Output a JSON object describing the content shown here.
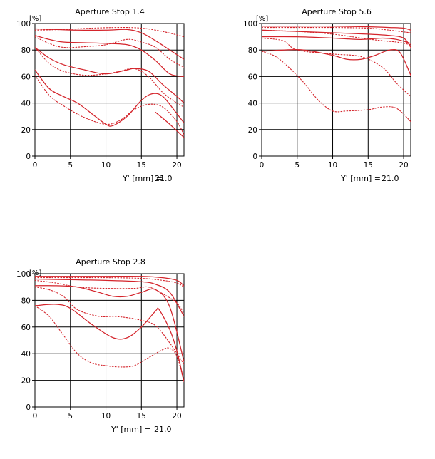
{
  "chart_data": [
    {
      "type": "line",
      "title": "Aperture Stop 1.4",
      "ylabel": "[%]",
      "xlabel_text": "Y' [mm] =",
      "xlabel_value": "21.0",
      "xlim": [
        0,
        21
      ],
      "ylim": [
        0,
        100
      ],
      "xticks": [
        0,
        5,
        10,
        15,
        20
      ],
      "yticks": [
        0,
        20,
        40,
        60,
        80,
        100
      ],
      "grid": true,
      "color": "#d4242b",
      "series": [
        {
          "style": "solid",
          "points": [
            [
              0,
              96
            ],
            [
              3,
              95.5
            ],
            [
              6,
              95
            ],
            [
              10,
              95
            ],
            [
              13,
              95.5
            ],
            [
              15,
              93
            ],
            [
              17,
              87
            ],
            [
              19,
              80
            ],
            [
              21,
              73
            ]
          ]
        },
        {
          "style": "dotted",
          "points": [
            [
              0,
              95
            ],
            [
              4,
              95.5
            ],
            [
              8,
              96.5
            ],
            [
              12,
              97
            ],
            [
              15,
              96.5
            ],
            [
              18,
              94
            ],
            [
              21,
              90
            ]
          ]
        },
        {
          "style": "solid",
          "points": [
            [
              0,
              91
            ],
            [
              2,
              88
            ],
            [
              4,
              86
            ],
            [
              7,
              85.5
            ],
            [
              10,
              85
            ],
            [
              13,
              84
            ],
            [
              15,
              80
            ],
            [
              17,
              72
            ],
            [
              19,
              62
            ],
            [
              21,
              60
            ]
          ]
        },
        {
          "style": "dotted",
          "points": [
            [
              0,
              90
            ],
            [
              2,
              85
            ],
            [
              4,
              82
            ],
            [
              7,
              82.5
            ],
            [
              10,
              84
            ],
            [
              13,
              88
            ],
            [
              15,
              86
            ],
            [
              17,
              82
            ],
            [
              19,
              73
            ],
            [
              21,
              67
            ]
          ]
        },
        {
          "style": "solid",
          "points": [
            [
              0,
              82
            ],
            [
              2,
              74
            ],
            [
              4,
              69
            ],
            [
              7,
              65
            ],
            [
              10,
              62
            ],
            [
              13,
              65
            ],
            [
              14,
              66
            ],
            [
              16,
              64
            ],
            [
              18,
              54
            ],
            [
              20,
              45
            ],
            [
              21,
              40
            ]
          ]
        },
        {
          "style": "dotted",
          "points": [
            [
              0,
              82
            ],
            [
              2,
              70
            ],
            [
              4,
              64
            ],
            [
              7,
              61
            ],
            [
              10,
              62
            ],
            [
              12,
              64
            ],
            [
              14,
              66
            ],
            [
              16,
              60
            ],
            [
              18,
              48
            ],
            [
              20,
              40
            ],
            [
              21,
              37
            ]
          ]
        },
        {
          "style": "solid",
          "points": [
            [
              0,
              65
            ],
            [
              2,
              51
            ],
            [
              4,
              45
            ],
            [
              6,
              40
            ],
            [
              8,
              32
            ],
            [
              10,
              24
            ],
            [
              11,
              23
            ],
            [
              13,
              30
            ],
            [
              15,
              42
            ],
            [
              16.5,
              47
            ],
            [
              18,
              45
            ],
            [
              20,
              32
            ],
            [
              21,
              25
            ]
          ]
        },
        {
          "style": "dotted",
          "points": [
            [
              0,
              61
            ],
            [
              2,
              46
            ],
            [
              4,
              38
            ],
            [
              7,
              29
            ],
            [
              10,
              24
            ],
            [
              12,
              27
            ],
            [
              14,
              35
            ],
            [
              16,
              39
            ],
            [
              18,
              37
            ],
            [
              20,
              26
            ],
            [
              21,
              16
            ]
          ]
        },
        {
          "style": "solid",
          "points": [
            [
              17,
              33
            ],
            [
              19,
              24
            ],
            [
              21,
              14
            ]
          ]
        }
      ]
    },
    {
      "type": "line",
      "title": "Aperture Stop 5.6",
      "ylabel": "[%]",
      "xlabel_text": "Y' [mm] =",
      "xlabel_value": "21.0",
      "xlim": [
        0,
        21
      ],
      "ylim": [
        0,
        100
      ],
      "xticks": [
        0,
        5,
        10,
        15,
        20
      ],
      "yticks": [
        0,
        20,
        40,
        60,
        80,
        100
      ],
      "grid": true,
      "color": "#d4242b",
      "series": [
        {
          "style": "solid",
          "points": [
            [
              0,
              98
            ],
            [
              5,
              98
            ],
            [
              10,
              98
            ],
            [
              15,
              97.5
            ],
            [
              18,
              97
            ],
            [
              20,
              96.5
            ],
            [
              21,
              95
            ]
          ]
        },
        {
          "style": "dotted",
          "points": [
            [
              0,
              97
            ],
            [
              5,
              97
            ],
            [
              10,
              97
            ],
            [
              15,
              96.5
            ],
            [
              18,
              95
            ],
            [
              21,
              93
            ]
          ]
        },
        {
          "style": "solid",
          "points": [
            [
              0,
              95
            ],
            [
              5,
              94
            ],
            [
              10,
              93
            ],
            [
              15,
              92
            ],
            [
              18,
              91
            ],
            [
              20,
              89
            ],
            [
              21,
              82
            ]
          ]
        },
        {
          "style": "dotted",
          "points": [
            [
              0,
              95
            ],
            [
              5,
              94
            ],
            [
              10,
              92
            ],
            [
              14,
              89
            ],
            [
              17,
              87
            ],
            [
              19,
              86
            ],
            [
              21,
              84
            ]
          ]
        },
        {
          "style": "solid",
          "points": [
            [
              0,
              90
            ],
            [
              5,
              90
            ],
            [
              10,
              89
            ],
            [
              14,
              88
            ],
            [
              17,
              89
            ],
            [
              19,
              88
            ],
            [
              21,
              85
            ]
          ]
        },
        {
          "style": "dotted",
          "points": [
            [
              0,
              89
            ],
            [
              3,
              87
            ],
            [
              5,
              80
            ],
            [
              10,
              77
            ],
            [
              14,
              75
            ],
            [
              17,
              67
            ],
            [
              19,
              55
            ],
            [
              21,
              45
            ]
          ]
        },
        {
          "style": "solid",
          "points": [
            [
              0,
              79
            ],
            [
              3,
              80
            ],
            [
              6,
              80
            ],
            [
              10,
              76
            ],
            [
              12,
              73
            ],
            [
              14,
              73
            ],
            [
              16,
              76
            ],
            [
              18,
              80
            ],
            [
              19.5,
              78
            ],
            [
              21,
              61
            ]
          ]
        },
        {
          "style": "dotted",
          "points": [
            [
              0,
              79
            ],
            [
              2,
              75
            ],
            [
              4,
              66
            ],
            [
              6,
              55
            ],
            [
              8,
              42
            ],
            [
              10,
              34
            ],
            [
              12,
              34
            ],
            [
              15,
              35
            ],
            [
              17,
              37
            ],
            [
              19,
              36
            ],
            [
              21,
              26
            ]
          ]
        }
      ]
    },
    {
      "type": "line",
      "title": "Aperture Stop 2.8",
      "ylabel": "[%]",
      "xlabel_text": "Y' [mm] =",
      "xlabel_value": "21.0",
      "xlim": [
        0,
        21
      ],
      "ylim": [
        0,
        100
      ],
      "xticks": [
        0,
        5,
        10,
        15,
        20
      ],
      "yticks": [
        0,
        20,
        40,
        60,
        80,
        100
      ],
      "grid": true,
      "color": "#d4242b",
      "series": [
        {
          "style": "solid",
          "points": [
            [
              0,
              98
            ],
            [
              5,
              98
            ],
            [
              10,
              98
            ],
            [
              15,
              98
            ],
            [
              18,
              97
            ],
            [
              20,
              95
            ],
            [
              21,
              91
            ]
          ]
        },
        {
          "style": "dotted",
          "points": [
            [
              0,
              97
            ],
            [
              5,
              97
            ],
            [
              10,
              97
            ],
            [
              15,
              96.5
            ],
            [
              18,
              95
            ],
            [
              20,
              93
            ],
            [
              21,
              90
            ]
          ]
        },
        {
          "style": "solid",
          "points": [
            [
              0,
              96
            ],
            [
              5,
              95.5
            ],
            [
              10,
              95
            ],
            [
              15,
              94
            ],
            [
              17,
              92
            ],
            [
              19,
              86
            ],
            [
              21,
              68
            ]
          ]
        },
        {
          "style": "dotted",
          "points": [
            [
              0,
              95
            ],
            [
              3,
              93
            ],
            [
              6,
              90
            ],
            [
              10,
              89
            ],
            [
              14,
              89
            ],
            [
              16,
              90
            ],
            [
              18,
              85
            ],
            [
              20,
              78
            ],
            [
              21,
              70
            ]
          ]
        },
        {
          "style": "solid",
          "points": [
            [
              0,
              91
            ],
            [
              3,
              91
            ],
            [
              6,
              90
            ],
            [
              9,
              86
            ],
            [
              11,
              83
            ],
            [
              13,
              83
            ],
            [
              15,
              86
            ],
            [
              17,
              88
            ],
            [
              19,
              75
            ],
            [
              21,
              34
            ]
          ]
        },
        {
          "style": "dotted",
          "points": [
            [
              0,
              90
            ],
            [
              2,
              88
            ],
            [
              4,
              83
            ],
            [
              6,
              73
            ],
            [
              9,
              68
            ],
            [
              11,
              68
            ],
            [
              13,
              67
            ],
            [
              15,
              65
            ],
            [
              17,
              61
            ],
            [
              19,
              48
            ],
            [
              21,
              32
            ]
          ]
        },
        {
          "style": "solid",
          "points": [
            [
              0,
              76
            ],
            [
              3,
              77
            ],
            [
              5,
              74
            ],
            [
              8,
              62
            ],
            [
              11,
              52
            ],
            [
              13,
              52
            ],
            [
              15,
              60
            ],
            [
              17,
              72
            ],
            [
              17.5,
              73
            ],
            [
              19,
              58
            ],
            [
              20,
              42
            ],
            [
              21,
              19
            ]
          ]
        },
        {
          "style": "dotted",
          "points": [
            [
              0,
              76
            ],
            [
              2,
              68
            ],
            [
              4,
              54
            ],
            [
              6,
              40
            ],
            [
              8,
              33
            ],
            [
              10,
              31
            ],
            [
              12,
              30
            ],
            [
              14,
              31
            ],
            [
              16,
              37
            ],
            [
              18,
              43
            ],
            [
              19,
              44
            ],
            [
              20,
              38
            ],
            [
              21,
              19
            ]
          ]
        }
      ]
    }
  ]
}
